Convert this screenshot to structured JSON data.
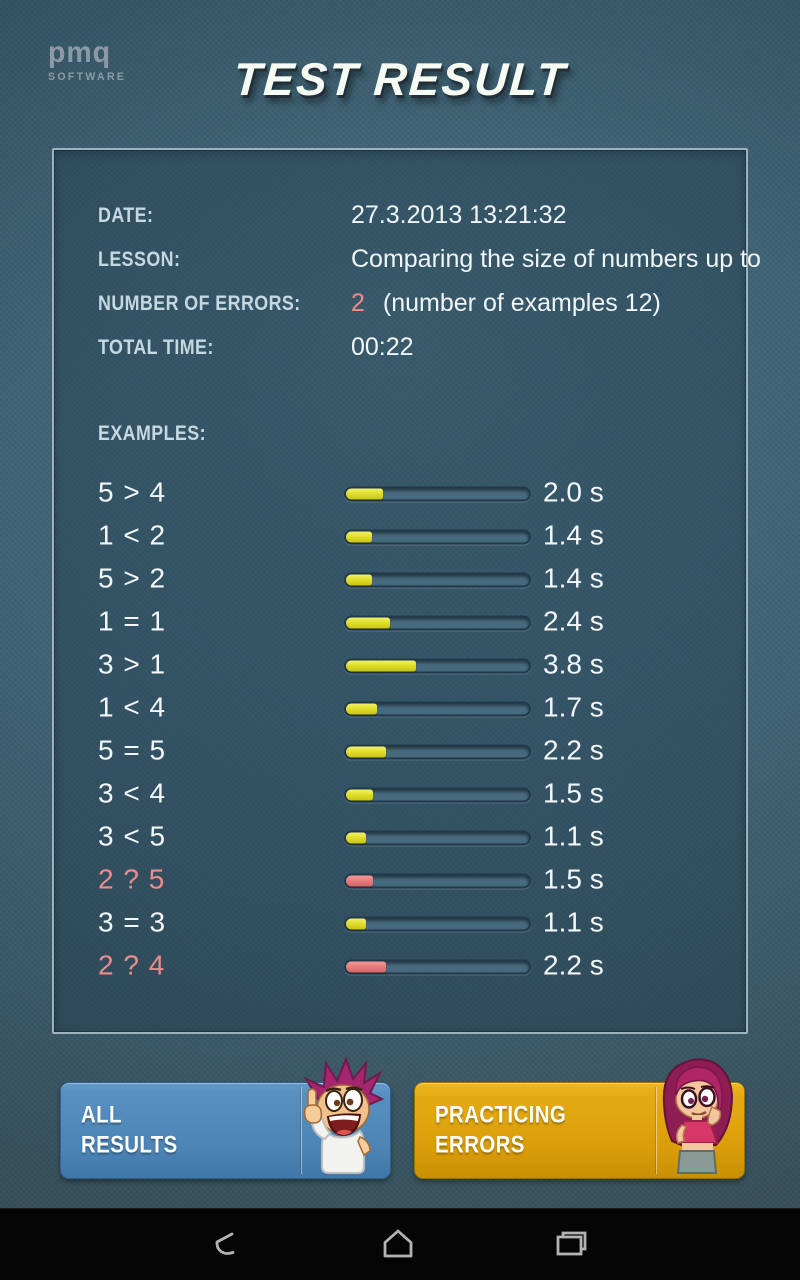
{
  "header": {
    "logo_line1": "pmq",
    "logo_line2": "SOFTWARE",
    "title": "TEST RESULT"
  },
  "info": {
    "date": {
      "label": "DATE:",
      "value": "27.3.2013 13:21:32"
    },
    "lesson": {
      "label": "LESSON:",
      "value": "Comparing the size of numbers up to"
    },
    "errors": {
      "label": "NUMBER OF ERRORS:",
      "count": "2",
      "note": "(number of examples 12)"
    },
    "total": {
      "label": "TOTAL TIME:",
      "value": "00:22"
    }
  },
  "examples": {
    "label": "EXAMPLES:",
    "max_seconds": 10,
    "rows": [
      {
        "expression": "5 > 4",
        "seconds": 2.0,
        "time_label": "2.0 s",
        "error": false
      },
      {
        "expression": "1 < 2",
        "seconds": 1.4,
        "time_label": "1.4 s",
        "error": false
      },
      {
        "expression": "5 > 2",
        "seconds": 1.4,
        "time_label": "1.4 s",
        "error": false
      },
      {
        "expression": "1 = 1",
        "seconds": 2.4,
        "time_label": "2.4 s",
        "error": false
      },
      {
        "expression": "3 > 1",
        "seconds": 3.8,
        "time_label": "3.8 s",
        "error": false
      },
      {
        "expression": "1 < 4",
        "seconds": 1.7,
        "time_label": "1.7 s",
        "error": false
      },
      {
        "expression": "5 = 5",
        "seconds": 2.2,
        "time_label": "2.2 s",
        "error": false
      },
      {
        "expression": "3 < 4",
        "seconds": 1.5,
        "time_label": "1.5 s",
        "error": false
      },
      {
        "expression": "3 < 5",
        "seconds": 1.1,
        "time_label": "1.1 s",
        "error": false
      },
      {
        "expression": "2 ? 5",
        "seconds": 1.5,
        "time_label": "1.5 s",
        "error": true
      },
      {
        "expression": "3 = 3",
        "seconds": 1.1,
        "time_label": "1.1 s",
        "error": false
      },
      {
        "expression": "2 ? 4",
        "seconds": 2.2,
        "time_label": "2.2 s",
        "error": true
      }
    ]
  },
  "buttons": {
    "all_results": {
      "line1": "ALL",
      "line2": "RESULTS",
      "mascot": "boy-pointing"
    },
    "practicing_errors": {
      "line1": "PRACTICING",
      "line2": "ERRORS",
      "mascot": "girl-thinking"
    }
  },
  "navbar": {
    "back": "back-icon",
    "home": "home-icon",
    "recents": "recents-icon"
  },
  "colors": {
    "bar_ok": "#ddda24",
    "bar_error": "#e57878",
    "error_text": "#ee8c8c",
    "button_blue": "#4c84b6",
    "button_orange": "#d99d09",
    "panel_border": "#9db2bd"
  }
}
